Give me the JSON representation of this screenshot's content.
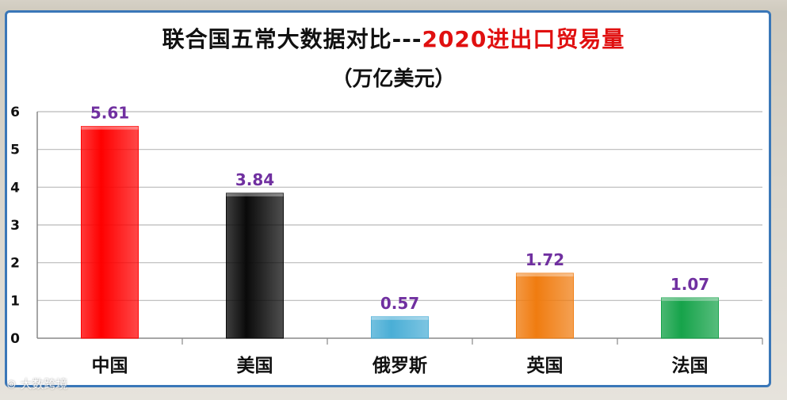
{
  "title": {
    "main": "联合国五常大数据对比---",
    "highlight": "2020进出口贸易量",
    "unit": "（万亿美元）"
  },
  "colors": {
    "highlight": "#e01010",
    "value_label": "#7030a0",
    "frame": "#3a77b8"
  },
  "watermark": "大数跨境",
  "chart_data": {
    "type": "bar",
    "title": "联合国五常大数据对比---2020进出口贸易量",
    "subtitle": "（万亿美元）",
    "categories": [
      "中国",
      "美国",
      "俄罗斯",
      "英国",
      "法国"
    ],
    "values": [
      5.61,
      3.84,
      0.57,
      1.72,
      1.07
    ],
    "value_labels": [
      "5.61",
      "3.84",
      "0.57",
      "1.72",
      "1.07"
    ],
    "bar_colors": [
      "#ff0000",
      "#0a0a0a",
      "#4aaed6",
      "#f07c10",
      "#16a34a"
    ],
    "ylim": [
      0,
      6
    ],
    "yticks": [
      0,
      1,
      2,
      3,
      4,
      5,
      6
    ],
    "xlabel": "",
    "ylabel": "",
    "grid": true,
    "legend": "none"
  }
}
